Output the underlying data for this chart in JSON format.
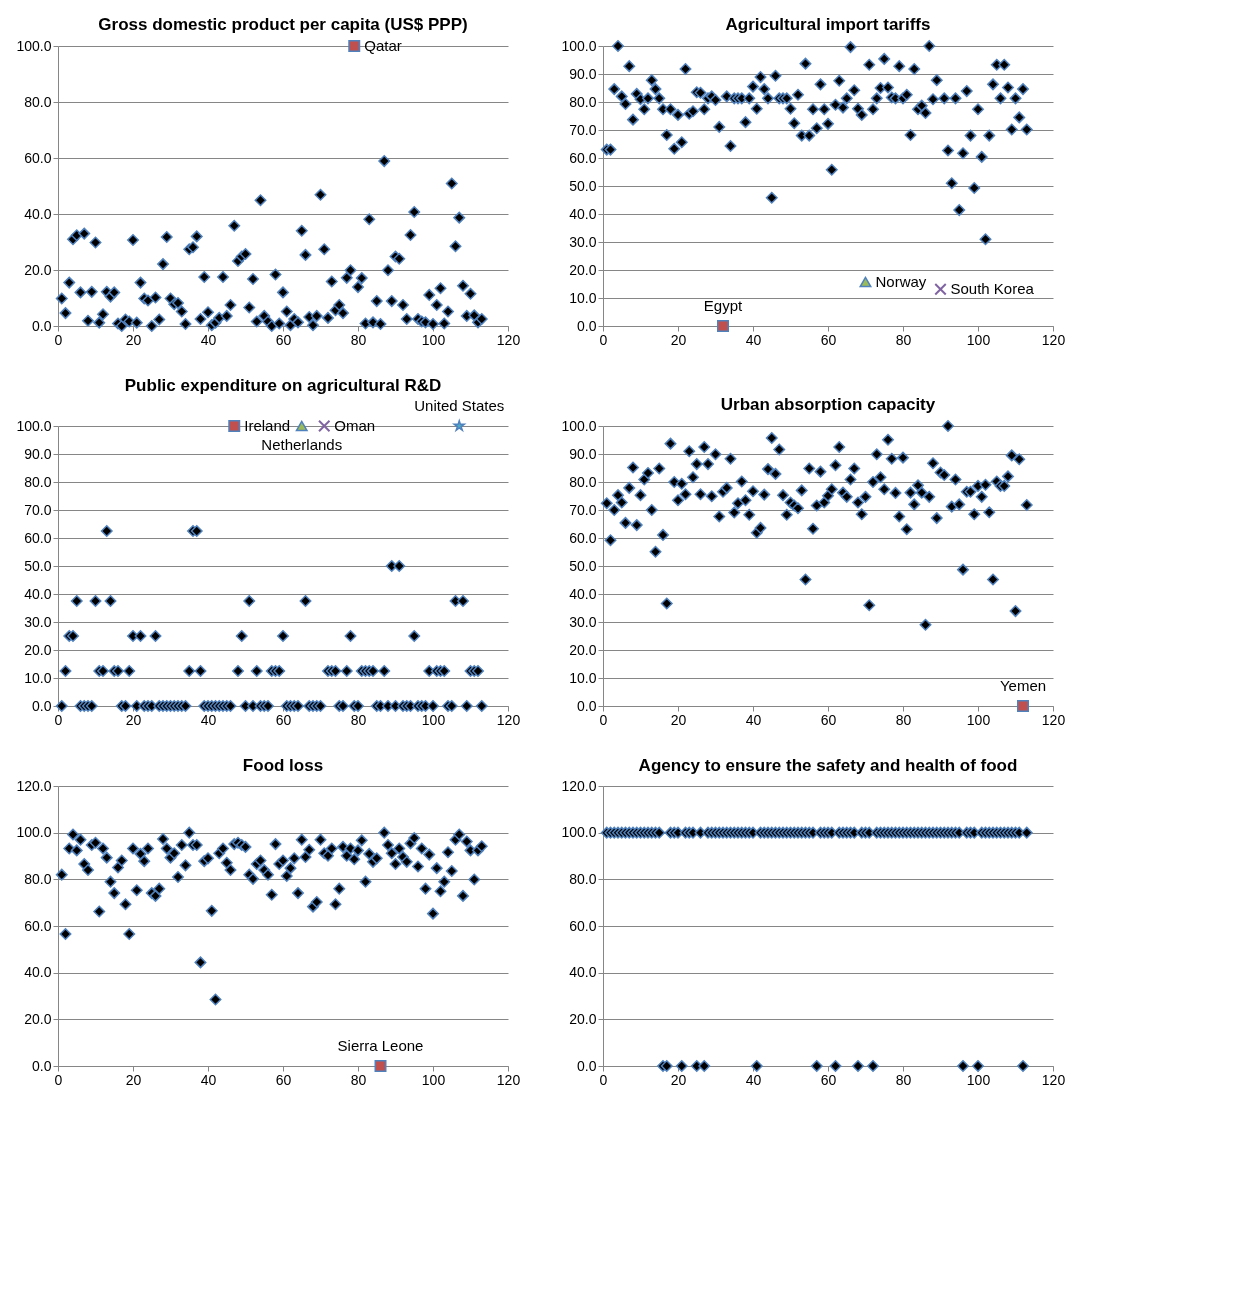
{
  "chart_data": [
    {
      "type": "scatter",
      "title": "Gross domestic product per capita (US$ PPP)",
      "marker": "diamond",
      "grid": "y",
      "xlim": [
        0,
        120
      ],
      "xticks": [
        0,
        20,
        40,
        60,
        80,
        100,
        120
      ],
      "ylim": [
        0,
        100
      ],
      "yticks": [
        {
          "value": 0,
          "label": "0.0"
        },
        {
          "value": 20,
          "label": "20.0"
        },
        {
          "value": 40,
          "label": "40.0"
        },
        {
          "value": 60,
          "label": "60.0"
        },
        {
          "value": 80,
          "label": "80.0"
        },
        {
          "value": 100,
          "label": "100.0"
        }
      ],
      "series": [
        {
          "color": "#000000",
          "x": [
            1,
            2,
            3,
            4,
            5,
            6,
            7,
            8,
            9,
            10,
            11,
            12,
            13,
            14,
            15,
            16,
            17,
            18,
            19,
            20,
            21,
            22,
            23,
            24,
            25,
            26,
            27,
            28,
            29,
            30,
            31,
            32,
            33,
            34,
            35,
            36,
            37,
            38,
            39,
            40,
            41,
            42,
            43,
            44,
            45,
            46,
            47,
            48,
            49,
            50,
            51,
            52,
            53,
            54,
            55,
            56,
            57,
            58,
            59,
            60,
            61,
            62,
            63,
            64,
            65,
            66,
            67,
            68,
            69,
            70,
            71,
            72,
            73,
            74,
            75,
            76,
            77,
            78,
            80,
            81,
            82,
            83,
            84,
            85,
            86,
            87,
            88,
            89,
            90,
            91,
            92,
            93,
            94,
            95,
            96,
            97,
            98,
            99,
            100,
            101,
            102,
            103,
            104,
            105,
            106,
            107,
            108,
            109,
            110,
            111,
            112,
            113
          ],
          "values": [
            9.8,
            4.6,
            15.5,
            31,
            32.4,
            12,
            33,
            1.9,
            12.2,
            29.8,
            1.2,
            4.2,
            12.2,
            10.5,
            12,
            0.9,
            0,
            2.3,
            1.6,
            30.7,
            1.2,
            15.5,
            9.8,
            9.1,
            0,
            10.2,
            2.3,
            22.1,
            31.8,
            9.8,
            7.8,
            8.2,
            5.2,
            0.7,
            27.4,
            28.1,
            32,
            2.5,
            17.5,
            4.9,
            0.3,
            1.2,
            2.9,
            17.5,
            3.6,
            7.5,
            35.8,
            23.2,
            24.8,
            25.7,
            6.6,
            16.8,
            1.6,
            44.9,
            3.6,
            1.6,
            0,
            18.4,
            0.9,
            12,
            5.2,
            0.3,
            2.5,
            1.3,
            34,
            25.4,
            3.2,
            0.3,
            3.6,
            46.9,
            27.4,
            2.9,
            15.9,
            5.6,
            7.5,
            4.6,
            17.2,
            19.9,
            13.9,
            17.1,
            0.9,
            38.1,
            1.3,
            8.9,
            0.7,
            58.9,
            19.9,
            8.9,
            24.8,
            24,
            7.5,
            2.5,
            32.5,
            40.7,
            2.5,
            1.6,
            1.3,
            11.1,
            0.7,
            7.5,
            13.5,
            0.9,
            5.2,
            50.9,
            28.5,
            38.7,
            14.4,
            3.6,
            11.5,
            3.8,
            1.3,
            2.5
          ]
        },
        {
          "name": "Qatar",
          "color": "#c0504d",
          "marker": "square",
          "x": [
            79
          ],
          "values": [
            100
          ]
        }
      ]
    },
    {
      "type": "scatter",
      "title": "Agricultural import tariffs",
      "marker": "diamond",
      "grid": "y",
      "xlim": [
        0,
        120
      ],
      "xticks": [
        0,
        20,
        40,
        60,
        80,
        100,
        120
      ],
      "ylim": [
        0,
        100
      ],
      "yticks": [
        {
          "value": 0,
          "label": "0.0"
        },
        {
          "value": 10,
          "label": "10.0"
        },
        {
          "value": 20,
          "label": "20.0"
        },
        {
          "value": 30,
          "label": "30.0"
        },
        {
          "value": 40,
          "label": "40.0"
        },
        {
          "value": 50,
          "label": "50.0"
        },
        {
          "value": 60,
          "label": "60.0"
        },
        {
          "value": 70,
          "label": "70.0"
        },
        {
          "value": 80,
          "label": "80.0"
        },
        {
          "value": 90,
          "label": "90.0"
        },
        {
          "value": 100,
          "label": "100.0"
        }
      ],
      "series": [
        {
          "color": "#000000",
          "x": [
            1,
            2,
            3,
            4,
            5,
            6,
            7,
            8,
            9,
            10,
            11,
            12,
            13,
            14,
            15,
            16,
            17,
            18,
            19,
            20,
            21,
            22,
            23,
            24,
            25,
            26,
            27,
            28,
            29,
            30,
            31,
            33,
            34,
            35,
            36,
            37,
            38,
            39,
            40,
            41,
            42,
            43,
            44,
            45,
            46,
            47,
            48,
            49,
            50,
            51,
            52,
            53,
            54,
            55,
            56,
            57,
            58,
            59,
            60,
            61,
            62,
            63,
            64,
            65,
            66,
            67,
            68,
            69,
            71,
            72,
            73,
            74,
            75,
            76,
            77,
            78,
            79,
            80,
            81,
            82,
            83,
            84,
            85,
            86,
            87,
            88,
            89,
            91,
            92,
            93,
            94,
            95,
            96,
            97,
            98,
            99,
            100,
            101,
            102,
            103,
            104,
            105,
            106,
            107,
            108,
            109,
            110,
            111,
            112,
            113
          ],
          "values": [
            63,
            63,
            84.6,
            100,
            82,
            79.3,
            92.8,
            73.7,
            82.9,
            81,
            77.4,
            81.3,
            87.8,
            84.6,
            81.3,
            77.4,
            68.2,
            77.4,
            63.3,
            75.4,
            65.6,
            91.8,
            75.8,
            76.7,
            83.5,
            83.3,
            77.4,
            81.3,
            82,
            80.7,
            71.1,
            82,
            64.3,
            81.3,
            81.3,
            81.3,
            72.8,
            81.3,
            85.5,
            77.6,
            88.9,
            84.6,
            81.3,
            45.8,
            89.4,
            81.3,
            81.3,
            81.3,
            77.6,
            72.4,
            82.6,
            68,
            93.7,
            68,
            77.4,
            70.6,
            86.3,
            77.4,
            72.2,
            55.8,
            79,
            87.6,
            78,
            81.3,
            99.6,
            84.2,
            77.6,
            75.4,
            93.3,
            77.4,
            81.3,
            85,
            95.4,
            85.2,
            81.6,
            81.3,
            92.8,
            81.3,
            82.6,
            68.2,
            91.8,
            77.4,
            78.7,
            76.1,
            100,
            81,
            87.8,
            81.3,
            62.7,
            51,
            81.3,
            41.4,
            61.7,
            83.9,
            68,
            49.3,
            77.4,
            60.4,
            31,
            68,
            86.3,
            93.3,
            81.3,
            93.3,
            85.2,
            70.2,
            81.3,
            74.5,
            84.6,
            70.2
          ]
        },
        {
          "name": "Egypt",
          "color": "#c0504d",
          "marker": "square",
          "x": [
            32
          ],
          "values": [
            0
          ]
        },
        {
          "name": "Norway",
          "color": "#9bbb59",
          "marker": "triangle",
          "x": [
            70
          ],
          "values": [
            15.7
          ]
        },
        {
          "name": "South Korea",
          "color": "#8064a2",
          "marker": "cross",
          "x": [
            90
          ],
          "values": [
            13.1
          ]
        }
      ]
    },
    {
      "type": "scatter",
      "title": "Public expenditure on agricultural R&D",
      "marker": "diamond",
      "grid": "y",
      "xlim": [
        0,
        120
      ],
      "xticks": [
        0,
        20,
        40,
        60,
        80,
        100,
        120
      ],
      "ylim": [
        0,
        100
      ],
      "yticks": [
        {
          "value": 0,
          "label": "0.0"
        },
        {
          "value": 10,
          "label": "10.0"
        },
        {
          "value": 20,
          "label": "20.0"
        },
        {
          "value": 30,
          "label": "30.0"
        },
        {
          "value": 40,
          "label": "40.0"
        },
        {
          "value": 50,
          "label": "50.0"
        },
        {
          "value": 60,
          "label": "60.0"
        },
        {
          "value": 70,
          "label": "70.0"
        },
        {
          "value": 80,
          "label": "80.0"
        },
        {
          "value": 90,
          "label": "90.0"
        },
        {
          "value": 100,
          "label": "100.0"
        }
      ],
      "series": [
        {
          "color": "#000000",
          "x": [
            1,
            2,
            3,
            4,
            5,
            6,
            7,
            8,
            9,
            10,
            11,
            12,
            13,
            14,
            15,
            16,
            17,
            18,
            19,
            20,
            21,
            22,
            23,
            24,
            25,
            26,
            27,
            28,
            29,
            30,
            31,
            32,
            33,
            34,
            35,
            36,
            37,
            38,
            39,
            40,
            41,
            42,
            43,
            44,
            45,
            46,
            48,
            49,
            50,
            51,
            52,
            53,
            54,
            55,
            56,
            57,
            58,
            59,
            60,
            61,
            62,
            63,
            64,
            66,
            67,
            68,
            69,
            70,
            72,
            73,
            74,
            75,
            76,
            77,
            78,
            79,
            80,
            81,
            82,
            83,
            84,
            85,
            86,
            87,
            88,
            89,
            90,
            91,
            92,
            93,
            94,
            95,
            96,
            97,
            98,
            99,
            100,
            101,
            102,
            103,
            104,
            105,
            106,
            108,
            109,
            110,
            111,
            112,
            113
          ],
          "values": [
            0,
            12.5,
            25,
            25,
            37.5,
            0,
            0,
            0,
            0,
            37.5,
            12.5,
            12.5,
            62.5,
            37.5,
            12.5,
            12.5,
            0,
            0,
            12.5,
            25,
            0,
            25,
            0,
            0,
            0,
            25,
            0,
            0,
            0,
            0,
            0,
            0,
            0,
            0,
            12.5,
            62.5,
            62.5,
            12.5,
            0,
            0,
            0,
            0,
            0,
            0,
            0,
            0,
            12.5,
            25,
            0,
            37.5,
            0,
            12.5,
            0,
            0,
            0,
            12.5,
            12.5,
            12.5,
            25,
            0,
            0,
            0,
            0,
            37.5,
            0,
            0,
            0,
            0,
            12.5,
            12.5,
            12.5,
            0,
            0,
            12.5,
            25,
            0,
            0,
            12.5,
            12.5,
            12.5,
            12.5,
            0,
            0,
            12.5,
            0,
            50,
            0,
            50,
            0,
            0,
            0,
            25,
            0,
            0,
            0,
            12.5,
            0,
            12.5,
            12.5,
            12.5,
            0,
            0,
            37.5,
            37.5,
            0,
            12.5,
            12.5,
            12.5,
            0
          ]
        },
        {
          "name": "Ireland",
          "color": "#c0504d",
          "marker": "square",
          "x": [
            47
          ],
          "values": [
            100
          ]
        },
        {
          "name": "Netherlands",
          "color": "#9bbb59",
          "marker": "triangle",
          "x": [
            65
          ],
          "values": [
            100
          ]
        },
        {
          "name": "Oman",
          "color": "#8064a2",
          "marker": "cross",
          "x": [
            71
          ],
          "values": [
            100
          ]
        },
        {
          "name": "United States",
          "color": "#4bacc6",
          "marker": "star",
          "x": [
            107
          ],
          "values": [
            100
          ]
        }
      ]
    },
    {
      "type": "scatter",
      "title": "Urban absorption capacity",
      "marker": "diamond",
      "grid": "y",
      "xlim": [
        0,
        120
      ],
      "xticks": [
        0,
        20,
        40,
        60,
        80,
        100,
        120
      ],
      "ylim": [
        0,
        100
      ],
      "yticks": [
        {
          "value": 0,
          "label": "0.0"
        },
        {
          "value": 10,
          "label": "10.0"
        },
        {
          "value": 20,
          "label": "20.0"
        },
        {
          "value": 30,
          "label": "30.0"
        },
        {
          "value": 40,
          "label": "40.0"
        },
        {
          "value": 50,
          "label": "50.0"
        },
        {
          "value": 60,
          "label": "60.0"
        },
        {
          "value": 70,
          "label": "70.0"
        },
        {
          "value": 80,
          "label": "80.0"
        },
        {
          "value": 90,
          "label": "90.0"
        },
        {
          "value": 100,
          "label": "100.0"
        }
      ],
      "series": [
        {
          "color": "#000000",
          "x": [
            1,
            2,
            3,
            4,
            5,
            6,
            7,
            8,
            9,
            10,
            11,
            12,
            13,
            14,
            15,
            16,
            17,
            18,
            19,
            20,
            21,
            22,
            23,
            24,
            25,
            26,
            27,
            28,
            29,
            30,
            31,
            32,
            33,
            34,
            35,
            36,
            37,
            38,
            39,
            40,
            41,
            42,
            43,
            44,
            45,
            46,
            47,
            48,
            49,
            50,
            51,
            52,
            53,
            54,
            55,
            56,
            57,
            58,
            59,
            60,
            61,
            62,
            63,
            64,
            65,
            66,
            67,
            68,
            69,
            70,
            71,
            72,
            73,
            74,
            75,
            76,
            77,
            78,
            79,
            80,
            81,
            82,
            83,
            84,
            85,
            86,
            87,
            88,
            89,
            90,
            91,
            92,
            93,
            94,
            95,
            96,
            97,
            98,
            99,
            100,
            101,
            102,
            103,
            104,
            105,
            106,
            107,
            108,
            109,
            110,
            111,
            113
          ],
          "values": [
            72.4,
            59.2,
            70,
            75.3,
            72.7,
            65.4,
            77.9,
            85.2,
            64.6,
            75.3,
            80.9,
            83.2,
            70,
            55.1,
            84.8,
            61.1,
            36.6,
            93.7,
            80,
            73.5,
            79.4,
            75.6,
            91,
            81.7,
            86.4,
            75.6,
            92.5,
            86.4,
            74.9,
            89.9,
            67.7,
            76.5,
            77.9,
            88.3,
            69.1,
            72.4,
            80.2,
            73.5,
            68.3,
            76.7,
            61.9,
            63.6,
            75.5,
            84.6,
            95.7,
            82.9,
            91.6,
            75.3,
            68.3,
            72.7,
            71.6,
            70.6,
            77,
            45.2,
            84.8,
            63.3,
            71.6,
            83.7,
            72.7,
            75.1,
            77.4,
            86,
            92.5,
            76.2,
            74.7,
            80.9,
            84.8,
            72.7,
            68.5,
            74.7,
            36,
            80,
            89.9,
            81.7,
            77.4,
            95.1,
            88.3,
            76.1,
            67.7,
            88.7,
            63.1,
            76.2,
            72,
            78.8,
            76.2,
            29,
            74.7,
            86.7,
            67.1,
            83.4,
            82.5,
            100,
            71.2,
            80.9,
            72,
            48.7,
            76.5,
            76.5,
            68.5,
            78.6,
            74.7,
            79,
            69.2,
            45.2,
            80.2,
            78.6,
            78.6,
            82,
            89.5,
            33.9,
            88.1,
            71.8
          ]
        },
        {
          "name": "Yemen",
          "color": "#c0504d",
          "marker": "square",
          "x": [
            112
          ],
          "values": [
            0
          ]
        }
      ]
    },
    {
      "type": "scatter",
      "title": "Food loss",
      "marker": "diamond",
      "grid": "y",
      "xlim": [
        0,
        120
      ],
      "xticks": [
        0,
        20,
        40,
        60,
        80,
        100,
        120
      ],
      "ylim": [
        0,
        120
      ],
      "yticks": [
        {
          "value": 0,
          "label": "0.0"
        },
        {
          "value": 20,
          "label": "20.0"
        },
        {
          "value": 40,
          "label": "40.0"
        },
        {
          "value": 60,
          "label": "60.0"
        },
        {
          "value": 80,
          "label": "80.0"
        },
        {
          "value": 100,
          "label": "100.0"
        },
        {
          "value": 120,
          "label": "120.0"
        }
      ],
      "series": [
        {
          "color": "#000000",
          "x": [
            1,
            2,
            3,
            4,
            5,
            6,
            7,
            8,
            9,
            10,
            11,
            12,
            13,
            14,
            15,
            16,
            17,
            18,
            19,
            20,
            21,
            22,
            23,
            24,
            25,
            26,
            27,
            28,
            29,
            30,
            31,
            32,
            33,
            34,
            35,
            36,
            37,
            38,
            39,
            40,
            41,
            42,
            43,
            44,
            45,
            46,
            47,
            48,
            49,
            50,
            51,
            52,
            53,
            54,
            55,
            56,
            57,
            58,
            59,
            60,
            61,
            62,
            63,
            64,
            65,
            66,
            67,
            68,
            69,
            70,
            71,
            72,
            73,
            74,
            75,
            76,
            77,
            78,
            79,
            80,
            81,
            82,
            83,
            84,
            85,
            87,
            88,
            89,
            90,
            91,
            92,
            93,
            94,
            95,
            96,
            97,
            98,
            99,
            100,
            101,
            102,
            103,
            104,
            105,
            106,
            107,
            108,
            109,
            110,
            111,
            112,
            113
          ],
          "values": [
            82,
            56.6,
            93.2,
            99.2,
            92.4,
            97,
            86.6,
            84,
            94.7,
            95.7,
            66.2,
            93.2,
            89.3,
            79,
            74.1,
            85.1,
            88.1,
            69.3,
            56.6,
            93.2,
            75.3,
            90.9,
            87.8,
            93.2,
            74.1,
            72.9,
            76,
            97.3,
            93.2,
            89.3,
            91.2,
            81,
            94.7,
            86,
            100,
            94.7,
            94.7,
            44.4,
            87.8,
            89,
            66.5,
            28.5,
            91.2,
            93.2,
            87.1,
            84,
            95.1,
            95.7,
            94.7,
            93.9,
            82,
            80.2,
            86.6,
            88.1,
            84,
            82,
            73.4,
            95.1,
            86.6,
            88.1,
            81.4,
            84.8,
            89,
            74.1,
            97,
            89.6,
            92.7,
            68.3,
            70.3,
            97,
            91.2,
            90.1,
            93.2,
            69.3,
            76,
            93.9,
            90.1,
            93.2,
            88.6,
            92.4,
            96.7,
            79,
            90.9,
            87.5,
            89,
            100,
            94.7,
            91.2,
            86.6,
            93.2,
            89.6,
            87.5,
            95.4,
            97.7,
            85.5,
            93.2,
            76,
            90.6,
            65.3,
            84.8,
            74.9,
            79,
            91.6,
            83.6,
            97,
            99.2,
            72.9,
            96.2,
            92.4,
            79.9,
            92.4,
            94.2
          ]
        },
        {
          "name": "Sierra Leone",
          "color": "#c0504d",
          "marker": "square",
          "x": [
            86
          ],
          "values": [
            0
          ]
        }
      ]
    },
    {
      "type": "scatter",
      "title": "Agency to ensure the safety and health of food",
      "marker": "diamond",
      "grid": "y",
      "xlim": [
        0,
        120
      ],
      "xticks": [
        0,
        20,
        40,
        60,
        80,
        100,
        120
      ],
      "ylim": [
        0,
        120
      ],
      "yticks": [
        {
          "value": 0,
          "label": "0.0"
        },
        {
          "value": 20,
          "label": "20.0"
        },
        {
          "value": 40,
          "label": "40.0"
        },
        {
          "value": 60,
          "label": "60.0"
        },
        {
          "value": 80,
          "label": "80.0"
        },
        {
          "value": 100,
          "label": "100.0"
        },
        {
          "value": 120,
          "label": "120.0"
        }
      ],
      "series": [
        {
          "color": "#000000",
          "x": [
            1,
            2,
            3,
            4,
            5,
            6,
            7,
            8,
            9,
            10,
            11,
            12,
            13,
            14,
            15,
            16,
            17,
            18,
            19,
            20,
            21,
            22,
            23,
            24,
            25,
            26,
            27,
            28,
            29,
            30,
            31,
            32,
            33,
            34,
            35,
            36,
            37,
            38,
            39,
            40,
            41,
            42,
            43,
            44,
            45,
            46,
            47,
            48,
            49,
            50,
            51,
            52,
            53,
            54,
            55,
            56,
            57,
            58,
            59,
            60,
            61,
            62,
            63,
            64,
            65,
            66,
            67,
            68,
            69,
            70,
            71,
            72,
            73,
            74,
            75,
            76,
            77,
            78,
            79,
            80,
            81,
            82,
            83,
            84,
            85,
            86,
            87,
            88,
            89,
            90,
            91,
            92,
            93,
            94,
            95,
            96,
            97,
            98,
            99,
            100,
            101,
            102,
            103,
            104,
            105,
            106,
            107,
            108,
            109,
            110,
            111,
            112,
            113
          ],
          "values": [
            100,
            100,
            100,
            100,
            100,
            100,
            100,
            100,
            100,
            100,
            100,
            100,
            100,
            100,
            100,
            0,
            0,
            100,
            100,
            100,
            0,
            100,
            100,
            100,
            0,
            100,
            0,
            100,
            100,
            100,
            100,
            100,
            100,
            100,
            100,
            100,
            100,
            100,
            100,
            100,
            0,
            100,
            100,
            100,
            100,
            100,
            100,
            100,
            100,
            100,
            100,
            100,
            100,
            100,
            100,
            100,
            0,
            100,
            100,
            100,
            100,
            0,
            100,
            100,
            100,
            100,
            100,
            0,
            100,
            100,
            100,
            0,
            100,
            100,
            100,
            100,
            100,
            100,
            100,
            100,
            100,
            100,
            100,
            100,
            100,
            100,
            100,
            100,
            100,
            100,
            100,
            100,
            100,
            100,
            100,
            0,
            100,
            100,
            100,
            0,
            100,
            100,
            100,
            100,
            100,
            100,
            100,
            100,
            100,
            100,
            100,
            0,
            100
          ]
        }
      ]
    }
  ]
}
